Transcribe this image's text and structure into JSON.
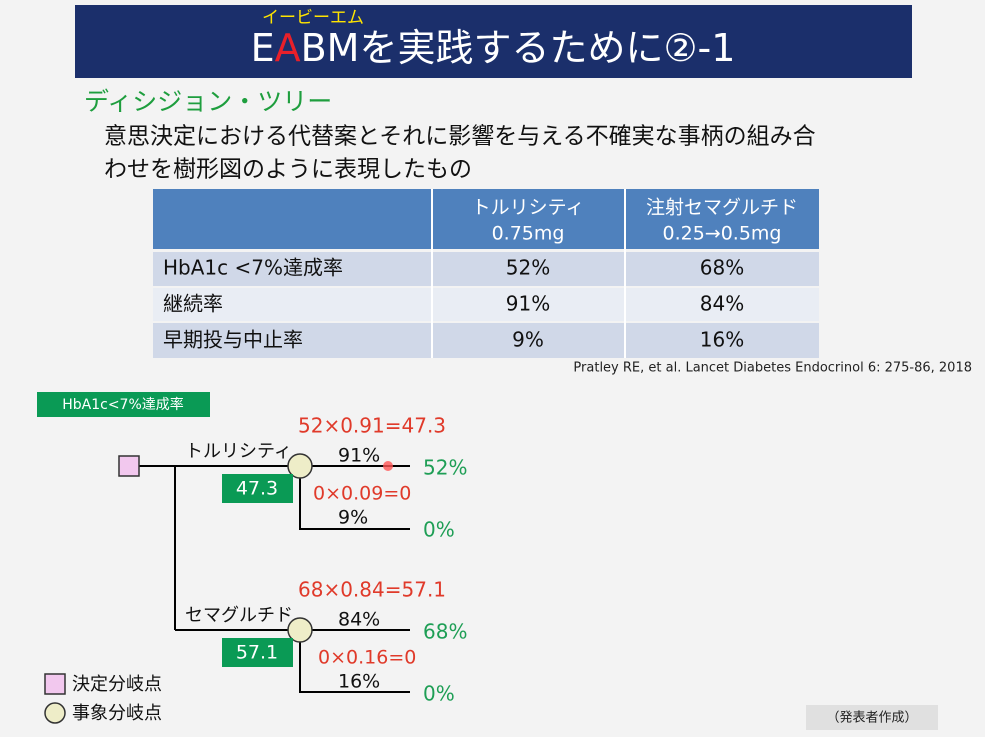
{
  "header": {
    "ruby": "イービーエム",
    "title_parts": [
      "E",
      "A",
      "BM",
      "を実践するために②-1"
    ]
  },
  "section": {
    "heading": "ディシジョン・ツリー",
    "lines": [
      "意思決定における代替案とそれに影響を与える不確実な事柄の組み合",
      "わせを樹形図のように表現したもの"
    ]
  },
  "table": {
    "columns": [
      {
        "name": "トルリシティ",
        "dose": "0.75mg"
      },
      {
        "name": "注射セマグルチド",
        "dose": "0.25→0.5mg"
      }
    ],
    "rows": [
      {
        "label": "HbA1c <7%達成率",
        "values": [
          "52%",
          "68%"
        ]
      },
      {
        "label": "継続率",
        "values": [
          "91%",
          "84%"
        ]
      },
      {
        "label": "早期投与中止率",
        "values": [
          "9%",
          "16%"
        ]
      }
    ]
  },
  "citation": "Pratley RE, et al.   Lancet Diabetes Endocrinol 6: 275-86, 2018",
  "tree": {
    "tag": "HbA1c<7%達成率",
    "branches": [
      {
        "name": "トルリシティ",
        "expected": "47.3",
        "formula_top": "52×0.91=47.3",
        "formula_bottom": "0×0.09=0",
        "p_top": "91%",
        "p_bottom": "9%",
        "out_top": "52%",
        "out_bottom": "0%"
      },
      {
        "name": "セマグルチド",
        "expected": "57.1",
        "formula_top": "68×0.84=57.1",
        "formula_bottom": "0×0.16=0",
        "p_top": "84%",
        "p_bottom": "16%",
        "out_top": "68%",
        "out_bottom": "0%"
      }
    ]
  },
  "legend": {
    "decision": "決定分岐点",
    "chance": "事象分岐点"
  },
  "footer": "（発表者作成）"
}
